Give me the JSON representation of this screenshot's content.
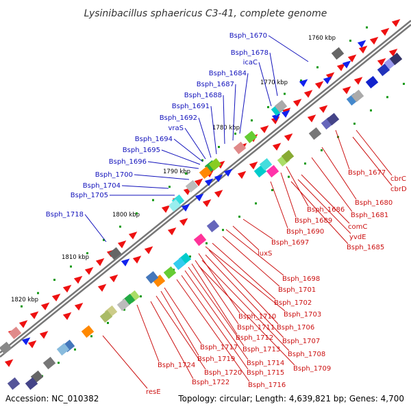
{
  "title": "Lysinibacillus sphaericus C3-41, complete genome",
  "footer": {
    "accession": "Accession: NC_010382",
    "summary": "Topology: circular; Length: 4,639,821 bp; Genes: 4,700"
  },
  "colors": {
    "backbone": "#777777",
    "forward_gene": "#ee1111",
    "reverse_gene": "#1122ee",
    "upper_label": "#1111bb",
    "lower_label": "#cc1111",
    "tick": "#119911"
  },
  "kbp_ticks": [
    "1760 kbp",
    "1770 kbp",
    "1780 kbp",
    "1790 kbp",
    "1800 kbp",
    "1810 kbp",
    "1820 kbp"
  ],
  "upper_labels": [
    "Bsph_1670",
    "Bsph_1678",
    "icaC",
    "Bsph_1684",
    "Bsph_1687",
    "Bsph_1688",
    "Bsph_1691",
    "Bsph_1692",
    "vraS",
    "Bsph_1694",
    "Bsph_1695",
    "Bsph_1696",
    "Bsph_1700",
    "Bsph_1704",
    "Bsph_1705",
    "Bsph_1718"
  ],
  "lower_labels": [
    "Bsph_1677",
    "cbrC",
    "cbrD",
    "Bsph_1680",
    "Bsph_1681",
    "Bsph_1686",
    "Bsph_1689",
    "comC",
    "yvdE",
    "Bsph_1690",
    "Bsph_1685",
    "Bsph_1697",
    "luxS",
    "Bsph_1698",
    "Bsph_1701",
    "Bsph_1702",
    "Bsph_1703",
    "Bsph_1710",
    "Bsph_1711",
    "Bsph_1706",
    "Bsph_1712",
    "Bsph_1707",
    "Bsph_1717",
    "Bsph_1713",
    "Bsph_1708",
    "Bsph_1719",
    "Bsph_1714",
    "Bsph_1709",
    "Bsph_1724",
    "Bsph_1720",
    "Bsph_1715",
    "Bsph_1722",
    "Bsph_1716",
    "resE"
  ]
}
